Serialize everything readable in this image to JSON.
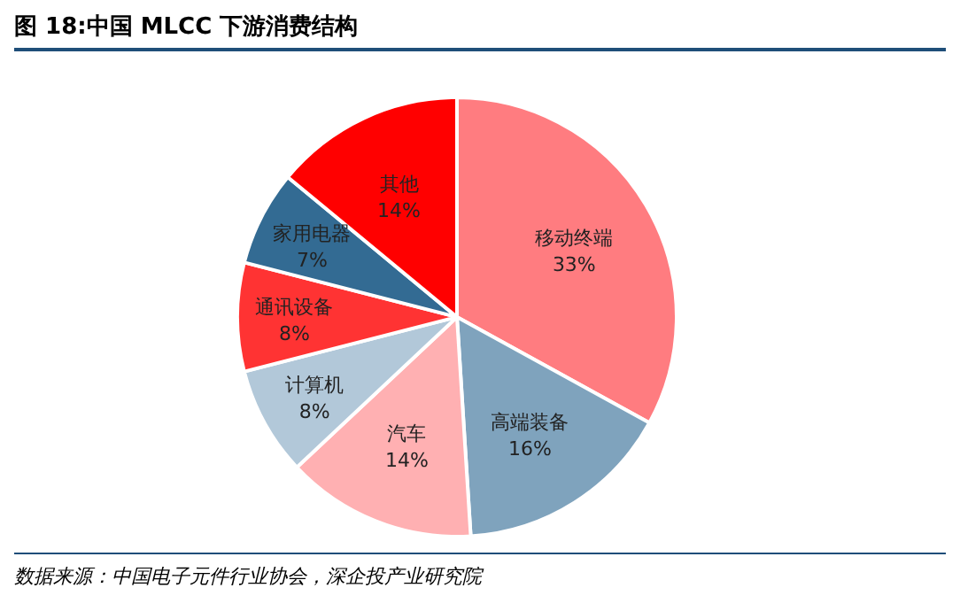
{
  "chart_data": {
    "type": "pie",
    "title": "图 18:中国 MLCC 下游消费结构",
    "categories": [
      "移动终端",
      "高端装备",
      "汽车",
      "计算机",
      "通讯设备",
      "家用电器",
      "其他"
    ],
    "values": [
      33,
      16,
      14,
      8,
      8,
      7,
      14
    ],
    "value_labels": [
      "33%",
      "16%",
      "14%",
      "8%",
      "8%",
      "7%",
      "14%"
    ],
    "colors": [
      "#ff7c80",
      "#7fa3bd",
      "#ffb0b2",
      "#b2c8d9",
      "#ff3333",
      "#336b93",
      "#ff0000"
    ],
    "annotations": [
      "数据来源：中国电子元件行业协会，深企投产业研究院"
    ]
  }
}
